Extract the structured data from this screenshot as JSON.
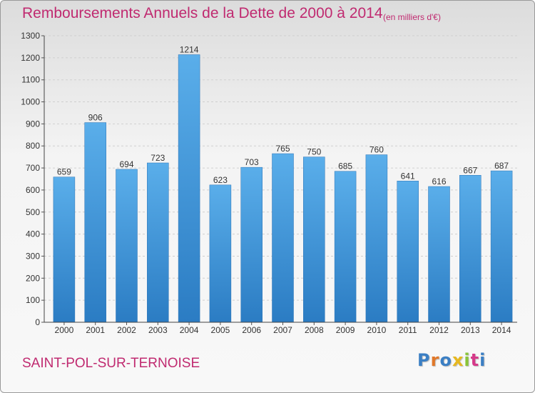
{
  "header": {
    "title": "Remboursements Annuels de la Dette de 2000 à 2014",
    "subtitle": "(en milliers d'€)"
  },
  "footer": {
    "commune": "SAINT-POL-SUR-TERNOISE",
    "logo": "Proxiti"
  },
  "colors": {
    "title": "#c02a70",
    "bar": "#3d8fd6",
    "logo_letters": [
      "#3b7fc4",
      "#e0782a",
      "#3b7fc4",
      "#e6b820",
      "#8ac43a",
      "#d63a8a",
      "#3b7fc4"
    ]
  },
  "chart_data": {
    "type": "bar",
    "title": "Remboursements Annuels de la Dette de 2000 à 2014",
    "subtitle": "(en milliers d'€)",
    "categories": [
      "2000",
      "2001",
      "2002",
      "2003",
      "2004",
      "2005",
      "2006",
      "2007",
      "2008",
      "2009",
      "2010",
      "2011",
      "2012",
      "2013",
      "2014"
    ],
    "values": [
      659,
      906,
      694,
      723,
      1214,
      623,
      703,
      765,
      750,
      685,
      760,
      641,
      616,
      667,
      687
    ],
    "yticks": [
      0,
      100,
      200,
      300,
      400,
      500,
      600,
      700,
      800,
      900,
      1000,
      1100,
      1200,
      1300
    ],
    "ylim": [
      0,
      1300
    ],
    "grid": true,
    "data_labels": true,
    "xlabel": "",
    "ylabel": ""
  }
}
